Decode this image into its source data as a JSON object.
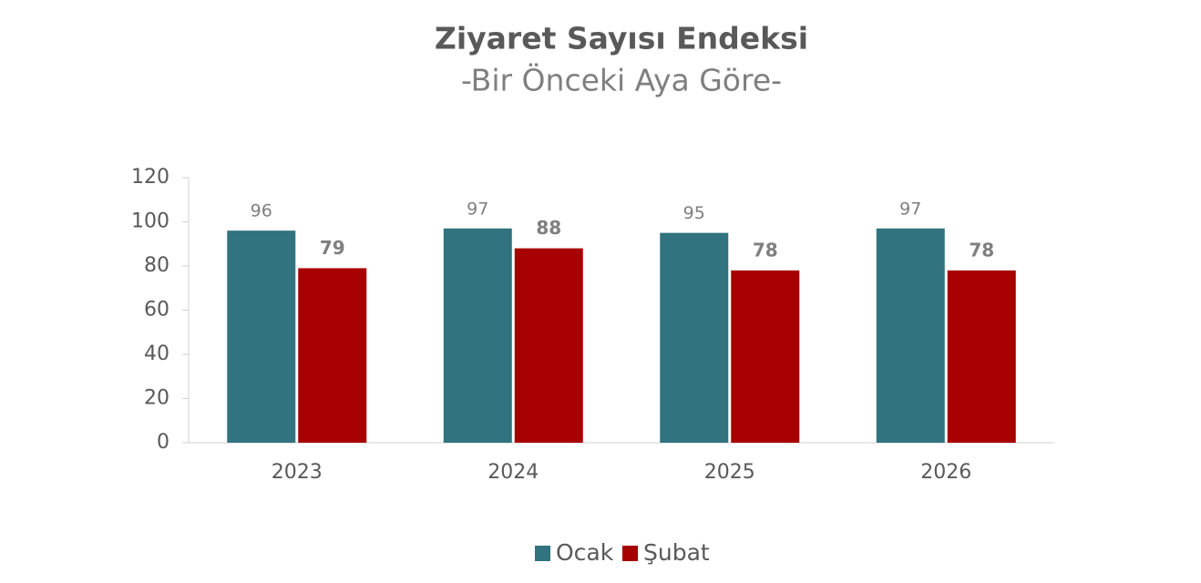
{
  "chart_data": {
    "type": "bar",
    "title": "Ziyaret Sayısı Endeksi",
    "subtitle": "-Bir Önceki Aya Göre-",
    "categories": [
      "2023",
      "2024",
      "2025",
      "2026"
    ],
    "series": [
      {
        "name": "Ocak",
        "color": "#31737f",
        "values": [
          96,
          97,
          95,
          97
        ]
      },
      {
        "name": "Şubat",
        "color": "#a80000",
        "values": [
          79,
          88,
          78,
          78
        ]
      }
    ],
    "ylim": [
      0,
      120
    ],
    "yticks": [
      0,
      20,
      40,
      60,
      80,
      100,
      120
    ],
    "grid": false,
    "legend": "bottom"
  }
}
